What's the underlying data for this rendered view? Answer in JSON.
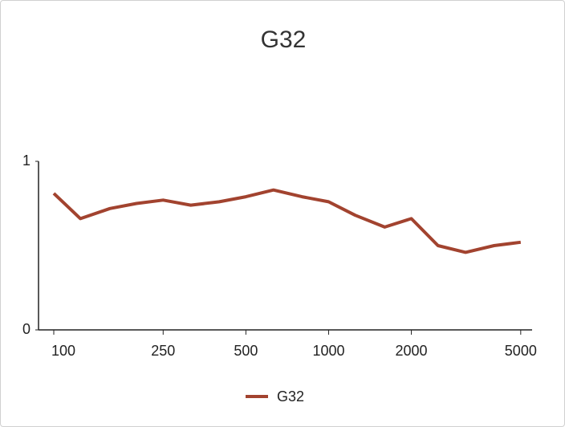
{
  "chart_data": {
    "type": "line",
    "title": "G32",
    "x": [
      100,
      125,
      160,
      200,
      250,
      315,
      400,
      500,
      630,
      800,
      1000,
      1250,
      1600,
      2000,
      2500,
      3150,
      4000,
      5000
    ],
    "series": [
      {
        "name": "G32",
        "color": "#a2432f",
        "values": [
          0.81,
          0.66,
          0.72,
          0.75,
          0.77,
          0.74,
          0.76,
          0.79,
          0.83,
          0.79,
          0.76,
          0.68,
          0.61,
          0.66,
          0.5,
          0.46,
          0.5,
          0.52
        ]
      }
    ],
    "xscale": "log",
    "xlim": [
      88,
      5500
    ],
    "xticks": [
      100,
      250,
      500,
      1000,
      2000,
      5000
    ],
    "ylim": [
      0,
      1
    ],
    "yticks": [
      0,
      1
    ],
    "legend": "bottom"
  }
}
